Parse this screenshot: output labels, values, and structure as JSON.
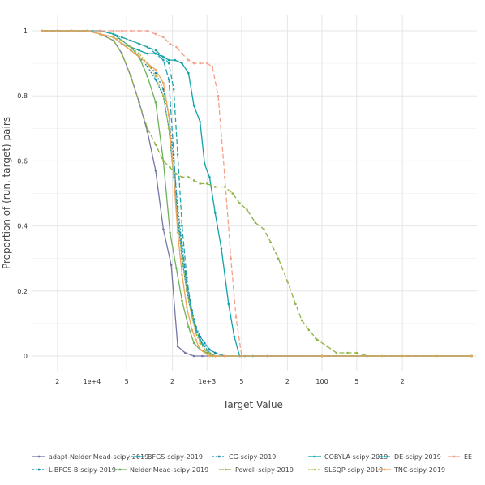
{
  "chart_data": {
    "type": "line",
    "xlabel": "Target Value",
    "ylabel": "Proportion of (run, target) pairs",
    "x_scale": "log-reversed",
    "xlim": [
      33000,
      4.5
    ],
    "ylim": [
      0,
      1
    ],
    "x_ticks": [
      {
        "value": 20000,
        "label": "2"
      },
      {
        "value": 10000,
        "label": "1e+4"
      },
      {
        "value": 5000,
        "label": "5"
      },
      {
        "value": 2000,
        "label": "2"
      },
      {
        "value": 1000,
        "label": "1e+3"
      },
      {
        "value": 500,
        "label": "5"
      },
      {
        "value": 200,
        "label": "2"
      },
      {
        "value": 100,
        "label": "100"
      },
      {
        "value": 50,
        "label": "5"
      },
      {
        "value": 20,
        "label": "2"
      }
    ],
    "y_ticks": [
      {
        "value": 0,
        "label": "0"
      },
      {
        "value": 0.2,
        "label": "0.2"
      },
      {
        "value": 0.4,
        "label": "0.4"
      },
      {
        "value": 0.6,
        "label": "0.6"
      },
      {
        "value": 0.8,
        "label": "0.8"
      },
      {
        "value": 1,
        "label": "1"
      }
    ],
    "grid": true,
    "legend_position": "bottom",
    "series": [
      {
        "name": "adapt-Nelder-Mead-scipy-2019",
        "color": "#7478a6",
        "dash": "",
        "x": [
          27000,
          20000,
          15000,
          11000,
          8500,
          6500,
          5500,
          4600,
          3900,
          3300,
          2800,
          2400,
          2050,
          1800,
          1550,
          1300,
          1100,
          900,
          700,
          500,
          300,
          100,
          5
        ],
        "y": [
          1,
          1,
          1,
          1,
          0.99,
          0.97,
          0.93,
          0.86,
          0.78,
          0.69,
          0.57,
          0.39,
          0.28,
          0.03,
          0.01,
          0,
          0,
          0,
          0,
          0,
          0,
          0,
          0
        ]
      },
      {
        "name": "BFGS-scipy-2019",
        "color": "#2a9fb0",
        "dash": "7,3",
        "x": [
          27000,
          20000,
          15000,
          11000,
          8500,
          6500,
          5500,
          4600,
          3900,
          3300,
          2800,
          2400,
          2150,
          1950,
          1800,
          1650,
          1500,
          1350,
          1250,
          1150,
          1050,
          950,
          850,
          700,
          500,
          100,
          5
        ],
        "y": [
          1,
          1,
          1,
          1,
          1,
          0.99,
          0.98,
          0.97,
          0.96,
          0.95,
          0.93,
          0.91,
          0.85,
          0.62,
          0.43,
          0.33,
          0.22,
          0.13,
          0.08,
          0.05,
          0.03,
          0.01,
          0,
          0,
          0,
          0,
          0
        ]
      },
      {
        "name": "CG-scipy-2019",
        "color": "#1b93b0",
        "dash": "2,2",
        "x": [
          27000,
          20000,
          15000,
          11000,
          8500,
          6500,
          5500,
          4600,
          3900,
          3300,
          2800,
          2400,
          2150,
          1950,
          1800,
          1650,
          1500,
          1350,
          1250,
          1150,
          1050,
          950,
          850,
          700,
          500,
          100,
          5
        ],
        "y": [
          1,
          1,
          1,
          1,
          0.99,
          0.98,
          0.96,
          0.94,
          0.92,
          0.89,
          0.85,
          0.8,
          0.7,
          0.55,
          0.42,
          0.3,
          0.2,
          0.12,
          0.08,
          0.06,
          0.04,
          0.02,
          0.01,
          0,
          0,
          0,
          0
        ]
      },
      {
        "name": "COBYLA-scipy-2019",
        "color": "#0ea3a8",
        "dash": "",
        "x": [
          27000,
          20000,
          15000,
          11000,
          8500,
          6500,
          5500,
          4600,
          3900,
          3300,
          2800,
          2400,
          2150,
          1900,
          1650,
          1450,
          1300,
          1150,
          1050,
          950,
          850,
          750,
          650,
          580,
          520,
          470,
          400,
          100,
          5
        ],
        "y": [
          1,
          1,
          1,
          1,
          1,
          0.99,
          0.97,
          0.95,
          0.94,
          0.93,
          0.93,
          0.92,
          0.91,
          0.91,
          0.9,
          0.87,
          0.77,
          0.72,
          0.59,
          0.55,
          0.44,
          0.33,
          0.16,
          0.06,
          0,
          0,
          0,
          0,
          0
        ]
      },
      {
        "name": "DE-scipy-2019",
        "color": "#20a7a2",
        "dash": "6,3",
        "x": [
          27000,
          20000,
          15000,
          11000,
          8500,
          6500,
          5500,
          4600,
          3900,
          3300,
          2800,
          2400,
          2150,
          1950,
          1800,
          1650,
          1500,
          1350,
          1250,
          1150,
          1050,
          950,
          850,
          700,
          500,
          100,
          5
        ],
        "y": [
          1,
          1,
          1,
          1,
          1,
          0.99,
          0.98,
          0.97,
          0.96,
          0.95,
          0.94,
          0.92,
          0.9,
          0.82,
          0.62,
          0.4,
          0.24,
          0.13,
          0.08,
          0.05,
          0.02,
          0.01,
          0,
          0,
          0,
          0,
          0
        ]
      },
      {
        "name": "EE",
        "color": "#f4a18c",
        "dash": "6,3",
        "x": [
          27000,
          20000,
          15000,
          11000,
          8500,
          6500,
          5500,
          4600,
          3900,
          3300,
          2800,
          2400,
          2100,
          1850,
          1650,
          1450,
          1300,
          1150,
          1000,
          900,
          800,
          700,
          620,
          560,
          500,
          100,
          5
        ],
        "y": [
          1,
          1,
          1,
          1,
          1,
          1,
          1,
          1,
          1,
          1,
          0.99,
          0.98,
          0.96,
          0.95,
          0.93,
          0.91,
          0.9,
          0.9,
          0.9,
          0.89,
          0.8,
          0.55,
          0.3,
          0.12,
          0,
          0,
          0
        ]
      },
      {
        "name": "L-BFGS-B-scipy-2019",
        "color": "#138bb0",
        "dash": "2,2",
        "x": [
          27000,
          20000,
          15000,
          11000,
          8500,
          6500,
          5500,
          4600,
          3900,
          3300,
          2800,
          2400,
          2150,
          1950,
          1800,
          1650,
          1500,
          1350,
          1250,
          1150,
          1050,
          950,
          850,
          700,
          500,
          100,
          5
        ],
        "y": [
          1,
          1,
          1,
          1,
          0.99,
          0.98,
          0.96,
          0.94,
          0.92,
          0.9,
          0.87,
          0.82,
          0.74,
          0.6,
          0.46,
          0.34,
          0.22,
          0.14,
          0.09,
          0.06,
          0.04,
          0.02,
          0.01,
          0,
          0,
          0,
          0
        ]
      },
      {
        "name": "Nelder-Mead-scipy-2019",
        "color": "#6cb25a",
        "dash": "",
        "x": [
          27000,
          20000,
          15000,
          11000,
          8500,
          6500,
          5500,
          4600,
          3900,
          3300,
          2800,
          2400,
          2100,
          1850,
          1650,
          1450,
          1300,
          1150,
          1000,
          900,
          700,
          500,
          100,
          5
        ],
        "y": [
          1,
          1,
          1,
          1,
          0.99,
          0.98,
          0.96,
          0.95,
          0.92,
          0.86,
          0.78,
          0.6,
          0.38,
          0.27,
          0.17,
          0.09,
          0.04,
          0.02,
          0.01,
          0,
          0,
          0,
          0,
          0
        ]
      },
      {
        "name": "Powell-scipy-2019",
        "color": "#8db345",
        "dash": "6,3",
        "x": [
          27000,
          20000,
          15000,
          11000,
          8500,
          6500,
          5500,
          4600,
          3900,
          3300,
          2800,
          2400,
          2100,
          1850,
          1650,
          1450,
          1300,
          1150,
          1000,
          850,
          700,
          600,
          520,
          450,
          380,
          320,
          280,
          240,
          200,
          170,
          150,
          130,
          110,
          90,
          75,
          60,
          50,
          40,
          30,
          20,
          10,
          5
        ],
        "y": [
          1,
          1,
          1,
          1,
          0.99,
          0.97,
          0.93,
          0.86,
          0.78,
          0.7,
          0.65,
          0.6,
          0.58,
          0.56,
          0.55,
          0.55,
          0.54,
          0.53,
          0.53,
          0.52,
          0.52,
          0.5,
          0.47,
          0.45,
          0.41,
          0.39,
          0.35,
          0.3,
          0.23,
          0.16,
          0.11,
          0.08,
          0.05,
          0.03,
          0.01,
          0.01,
          0.01,
          0,
          0,
          0,
          0,
          0
        ]
      },
      {
        "name": "SLSQP-scipy-2019",
        "color": "#b2b83b",
        "dash": "2,2",
        "x": [
          27000,
          20000,
          15000,
          11000,
          8500,
          6500,
          5500,
          4600,
          3900,
          3300,
          2800,
          2400,
          2150,
          1950,
          1800,
          1650,
          1500,
          1350,
          1250,
          1150,
          1050,
          950,
          850,
          700,
          500,
          100,
          5
        ],
        "y": [
          1,
          1,
          1,
          1,
          0.99,
          0.98,
          0.97,
          0.95,
          0.93,
          0.9,
          0.86,
          0.8,
          0.7,
          0.55,
          0.42,
          0.3,
          0.2,
          0.12,
          0.07,
          0.04,
          0.02,
          0.01,
          0,
          0,
          0,
          0,
          0
        ]
      },
      {
        "name": "TNC-scipy-2019",
        "color": "#f0a35a",
        "dash": "",
        "x": [
          27000,
          20000,
          15000,
          11000,
          8500,
          6500,
          5500,
          4600,
          3900,
          3300,
          2800,
          2400,
          2150,
          1950,
          1800,
          1650,
          1500,
          1350,
          1250,
          1150,
          1050,
          950,
          850,
          700,
          500,
          100,
          5
        ],
        "y": [
          1,
          1,
          1,
          1,
          0.99,
          0.98,
          0.96,
          0.94,
          0.92,
          0.9,
          0.88,
          0.84,
          0.74,
          0.55,
          0.38,
          0.25,
          0.15,
          0.08,
          0.05,
          0.02,
          0.01,
          0,
          0,
          0,
          0,
          0,
          0
        ]
      }
    ]
  }
}
